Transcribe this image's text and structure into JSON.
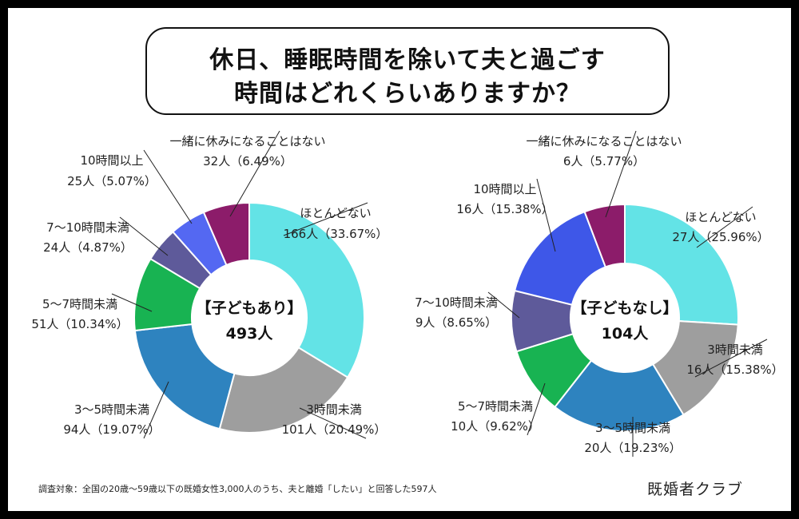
{
  "title": {
    "line1": "休日、睡眠時間を除いて夫と過ごす",
    "line2": "時間はどれくらいありますか？"
  },
  "chart_data": [
    {
      "type": "pie",
      "style": "donut",
      "center_label": "【子どもあり】",
      "center_value": "493人",
      "slices": [
        {
          "label": "ほとんどない",
          "count_label": "166人（33.67%）",
          "value": 33.67,
          "color": "#63e3e6"
        },
        {
          "label": "3時間未満",
          "count_label": "101人（20.49%）",
          "value": 20.49,
          "color": "#9e9e9e"
        },
        {
          "label": "3〜5時間未満",
          "count_label": "94人（19.07%）",
          "value": 19.07,
          "color": "#2e83bf"
        },
        {
          "label": "5〜7時間未満",
          "count_label": "51人（10.34%）",
          "value": 10.34,
          "color": "#18b352"
        },
        {
          "label": "7〜10時間未満",
          "count_label": "24人（4.87%）",
          "value": 4.87,
          "color": "#5e5a9a"
        },
        {
          "label": "10時間以上",
          "count_label": "25人（5.07%）",
          "value": 5.07,
          "color": "#5468f2"
        },
        {
          "label": "一緒に休みになることはない",
          "count_label": "32人（6.49%）",
          "value": 6.49,
          "color": "#8c1c6a"
        }
      ]
    },
    {
      "type": "pie",
      "style": "donut",
      "center_label": "【子どもなし】",
      "center_value": "104人",
      "slices": [
        {
          "label": "ほとんどない",
          "count_label": "27人（25.96%）",
          "value": 25.96,
          "color": "#63e3e6"
        },
        {
          "label": "3時間未満",
          "count_label": "16人（15.38%）",
          "value": 15.38,
          "color": "#9e9e9e"
        },
        {
          "label": "3〜5時間未満",
          "count_label": "20人（19.23%）",
          "value": 19.23,
          "color": "#2e83bf"
        },
        {
          "label": "5〜7時間未満",
          "count_label": "10人（9.62%）",
          "value": 9.62,
          "color": "#18b352"
        },
        {
          "label": "7〜10時間未満",
          "count_label": "9人（8.65%）",
          "value": 8.65,
          "color": "#5e5a9a"
        },
        {
          "label": "10時間以上",
          "count_label": "16人（15.38%）",
          "value": 15.38,
          "color": "#3e57e8"
        },
        {
          "label": "一緒に休みになることはない",
          "count_label": "6人（5.77%）",
          "value": 5.77,
          "color": "#8c1c6a"
        }
      ]
    }
  ],
  "footnote": "調査対象：全国の20歳〜59歳以下の既婚女性3,000人のうち、夫と離婚「したい」と回答した597人",
  "brand": "既婚者クラブ"
}
